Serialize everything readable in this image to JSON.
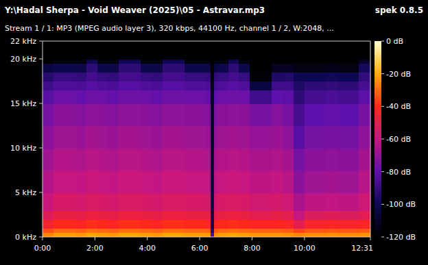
{
  "chart_data": {
    "type": "heatmap",
    "title": "Y:\\Hadal Sherpa - Void Weaver (2025)\\05 - Astravar.mp3",
    "subtitle": "Stream 1 / 1: MP3 (MPEG audio layer 3), 320 kbps, 44100 Hz, channel 1 / 2, W:2048, ...",
    "annotations": [
      "spek 0.8.5"
    ],
    "x_bins": [
      0,
      25,
      50,
      75,
      100,
      125,
      150,
      175,
      200,
      225,
      250,
      275,
      300,
      325,
      350,
      375,
      385,
      393,
      400,
      425,
      450,
      475,
      500,
      525,
      550,
      575,
      600,
      625,
      650,
      675,
      700,
      725,
      751
    ],
    "y_bins": [
      0,
      0.5,
      1,
      2,
      3,
      5,
      7.5,
      10,
      12.5,
      15,
      16.5,
      17.5,
      18.5,
      19.5,
      20,
      22
    ],
    "cells": [
      [
        -26,
        -22,
        -22,
        -23,
        -21,
        -22,
        -23,
        -21,
        -21,
        -22,
        -23,
        -21,
        -21,
        -22,
        -22,
        -23,
        -85,
        -24,
        -22,
        -21,
        -22,
        -23,
        -23,
        -23,
        -24,
        -26,
        -25,
        -25,
        -24,
        -25,
        -25,
        -24
      ],
      [
        -34,
        -30,
        -30,
        -31,
        -29,
        -30,
        -31,
        -29,
        -29,
        -30,
        -31,
        -29,
        -29,
        -30,
        -30,
        -31,
        -95,
        -32,
        -30,
        -29,
        -30,
        -31,
        -31,
        -31,
        -32,
        -36,
        -33,
        -33,
        -32,
        -33,
        -33,
        -32
      ],
      [
        -44,
        -40,
        -40,
        -41,
        -39,
        -40,
        -41,
        -39,
        -39,
        -40,
        -41,
        -39,
        -39,
        -40,
        -40,
        -41,
        -105,
        -42,
        -40,
        -39,
        -40,
        -41,
        -41,
        -41,
        -42,
        -50,
        -43,
        -43,
        -42,
        -43,
        -43,
        -42
      ],
      [
        -52,
        -48,
        -48,
        -49,
        -47,
        -48,
        -49,
        -47,
        -47,
        -48,
        -49,
        -47,
        -47,
        -48,
        -48,
        -49,
        -105,
        -50,
        -48,
        -47,
        -48,
        -50,
        -50,
        -49,
        -50,
        -60,
        -53,
        -53,
        -52,
        -53,
        -53,
        -51
      ],
      [
        -59,
        -55,
        -55,
        -56,
        -54,
        -55,
        -56,
        -54,
        -54,
        -55,
        -56,
        -54,
        -54,
        -55,
        -55,
        -56,
        -105,
        -57,
        -55,
        -54,
        -55,
        -57,
        -57,
        -56,
        -58,
        -66,
        -62,
        -62,
        -61,
        -62,
        -62,
        -58
      ],
      [
        -64,
        -60,
        -60,
        -61,
        -59,
        -60,
        -61,
        -59,
        -59,
        -60,
        -61,
        -59,
        -59,
        -60,
        -60,
        -61,
        -105,
        -62,
        -60,
        -59,
        -60,
        -62,
        -62,
        -61,
        -63,
        -72,
        -68,
        -68,
        -67,
        -68,
        -68,
        -63
      ],
      [
        -68,
        -64,
        -64,
        -65,
        -63,
        -64,
        -65,
        -63,
        -63,
        -64,
        -65,
        -63,
        -63,
        -64,
        -64,
        -65,
        -108,
        -66,
        -64,
        -63,
        -64,
        -66,
        -66,
        -65,
        -67,
        -76,
        -72,
        -72,
        -71,
        -72,
        -72,
        -67
      ],
      [
        -72,
        -68,
        -68,
        -69,
        -67,
        -68,
        -69,
        -67,
        -67,
        -68,
        -69,
        -67,
        -67,
        -68,
        -68,
        -69,
        -110,
        -70,
        -68,
        -67,
        -68,
        -70,
        -70,
        -69,
        -71,
        -82,
        -76,
        -76,
        -75,
        -76,
        -76,
        -71
      ],
      [
        -76,
        -72,
        -72,
        -73,
        -71,
        -72,
        -73,
        -71,
        -71,
        -72,
        -73,
        -71,
        -71,
        -72,
        -72,
        -73,
        -110,
        -74,
        -72,
        -71,
        -72,
        -75,
        -75,
        -73,
        -75,
        -86,
        -80,
        -80,
        -79,
        -80,
        -80,
        -75
      ],
      [
        -82,
        -78,
        -78,
        -79,
        -77,
        -78,
        -79,
        -77,
        -77,
        -78,
        -79,
        -77,
        -77,
        -78,
        -78,
        -79,
        -112,
        -80,
        -78,
        -77,
        -78,
        -88,
        -88,
        -80,
        -81,
        -92,
        -86,
        -86,
        -85,
        -86,
        -86,
        -81
      ],
      [
        -88,
        -84,
        -84,
        -85,
        -82,
        -84,
        -85,
        -82,
        -82,
        -84,
        -85,
        -82,
        -82,
        -84,
        -84,
        -85,
        -115,
        -86,
        -84,
        -82,
        -84,
        -105,
        -105,
        -88,
        -88,
        -96,
        -92,
        -92,
        -91,
        -92,
        -92,
        -86
      ],
      [
        -94,
        -90,
        -90,
        -91,
        -87,
        -90,
        -91,
        -87,
        -87,
        -90,
        -91,
        -87,
        -87,
        -90,
        -90,
        -91,
        -118,
        -92,
        -90,
        -87,
        -90,
        -118,
        -118,
        -96,
        -95,
        -100,
        -100,
        -100,
        -99,
        -100,
        -100,
        -91
      ],
      [
        -104,
        -102,
        -102,
        -103,
        -92,
        -102,
        -103,
        -92,
        -92,
        -102,
        -103,
        -92,
        -92,
        -102,
        -102,
        -103,
        -120,
        -104,
        -102,
        -92,
        -102,
        -120,
        -120,
        -112,
        -112,
        -115,
        -115,
        -115,
        -114,
        -115,
        -115,
        -98
      ],
      [
        -120,
        -116,
        -116,
        -116,
        -100,
        -116,
        -116,
        -100,
        -100,
        -116,
        -116,
        -100,
        -100,
        -116,
        -116,
        -116,
        -120,
        -116,
        -116,
        -100,
        -116,
        -120,
        -120,
        -120,
        -120,
        -120,
        -120,
        -120,
        -120,
        -120,
        -120,
        -110
      ],
      [
        -120,
        -120,
        -120,
        -120,
        -120,
        -120,
        -120,
        -120,
        -120,
        -120,
        -120,
        -120,
        -120,
        -120,
        -120,
        -120,
        -120,
        -120,
        -120,
        -120,
        -120,
        -120,
        -120,
        -120,
        -120,
        -120,
        -120,
        -120,
        -120,
        -120,
        -120,
        -120
      ]
    ],
    "xlim": [
      0,
      751
    ],
    "ylim": [
      0,
      22
    ],
    "xticks": [
      {
        "value": 0,
        "label": "0:00"
      },
      {
        "value": 120,
        "label": "2:00"
      },
      {
        "value": 240,
        "label": "4:00"
      },
      {
        "value": 360,
        "label": "6:00"
      },
      {
        "value": 480,
        "label": "8:00"
      },
      {
        "value": 600,
        "label": "10:00"
      },
      {
        "value": 751,
        "label": "12:31"
      }
    ],
    "yticks": [
      {
        "value": 0,
        "label": "0 kHz"
      },
      {
        "value": 5,
        "label": "5 kHz"
      },
      {
        "value": 10,
        "label": "10 kHz"
      },
      {
        "value": 15,
        "label": "15 kHz"
      },
      {
        "value": 20,
        "label": "20 kHz"
      },
      {
        "value": 22,
        "label": "22 kHz"
      }
    ],
    "colorbar": {
      "range": [
        -120,
        0
      ],
      "ticks": [
        {
          "value": 0,
          "label": "0 dB"
        },
        {
          "value": -20,
          "label": "-20 dB"
        },
        {
          "value": -40,
          "label": "-40 dB"
        },
        {
          "value": -60,
          "label": "-60 dB"
        },
        {
          "value": -80,
          "label": "-80 dB"
        },
        {
          "value": -100,
          "label": "-100 dB"
        },
        {
          "value": -120,
          "label": "-120 dB"
        }
      ]
    }
  }
}
